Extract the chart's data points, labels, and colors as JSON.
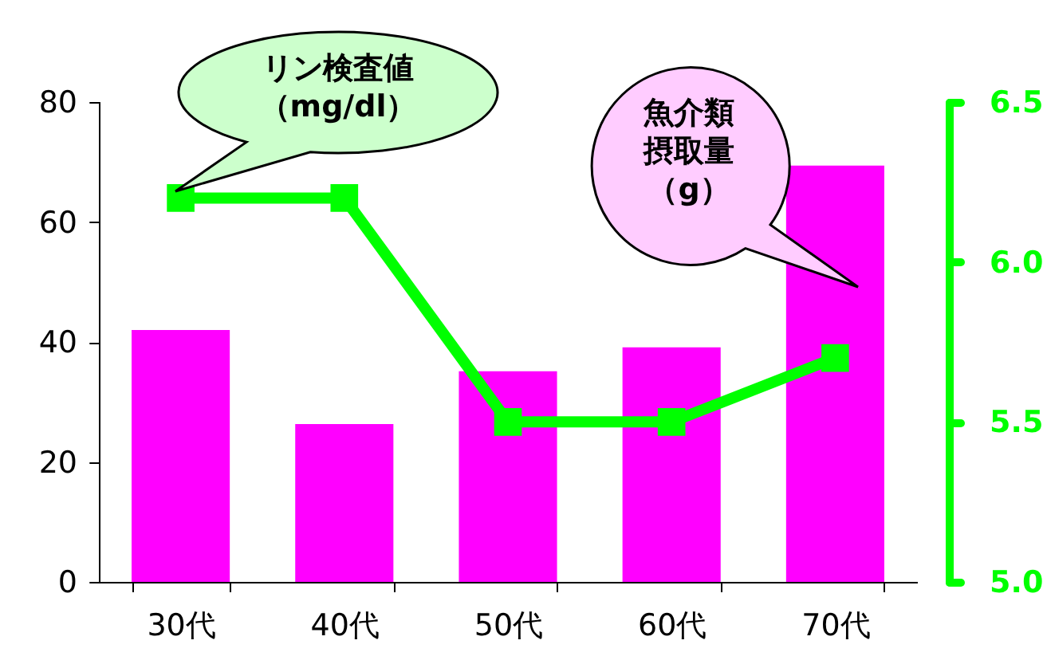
{
  "chart_data": {
    "type": "bar",
    "categories": [
      "30代",
      "40代",
      "50代",
      "60代",
      "70代"
    ],
    "series": [
      {
        "name": "魚介類摂取量（g）",
        "color": "#ff00ff",
        "values": [
          42,
          26.3,
          35.1,
          39.1,
          69.4
        ]
      },
      {
        "name": "リン検査値（mg/dl）",
        "type": "line",
        "axis": "y2",
        "color": "#00ff00",
        "values": [
          6.2,
          6.2,
          5.5,
          5.5,
          5.7
        ]
      }
    ],
    "ylim": [
      0,
      80
    ],
    "yticks": [
      0,
      20,
      40,
      60,
      80
    ],
    "y2lim": [
      5.0,
      6.5
    ],
    "y2ticks": [
      {
        "value": 5,
        "label": "5.0"
      },
      5.5,
      {
        "value": 6,
        "label": "6.0"
      },
      6.5
    ],
    "marker": "square",
    "grid": false
  }
}
